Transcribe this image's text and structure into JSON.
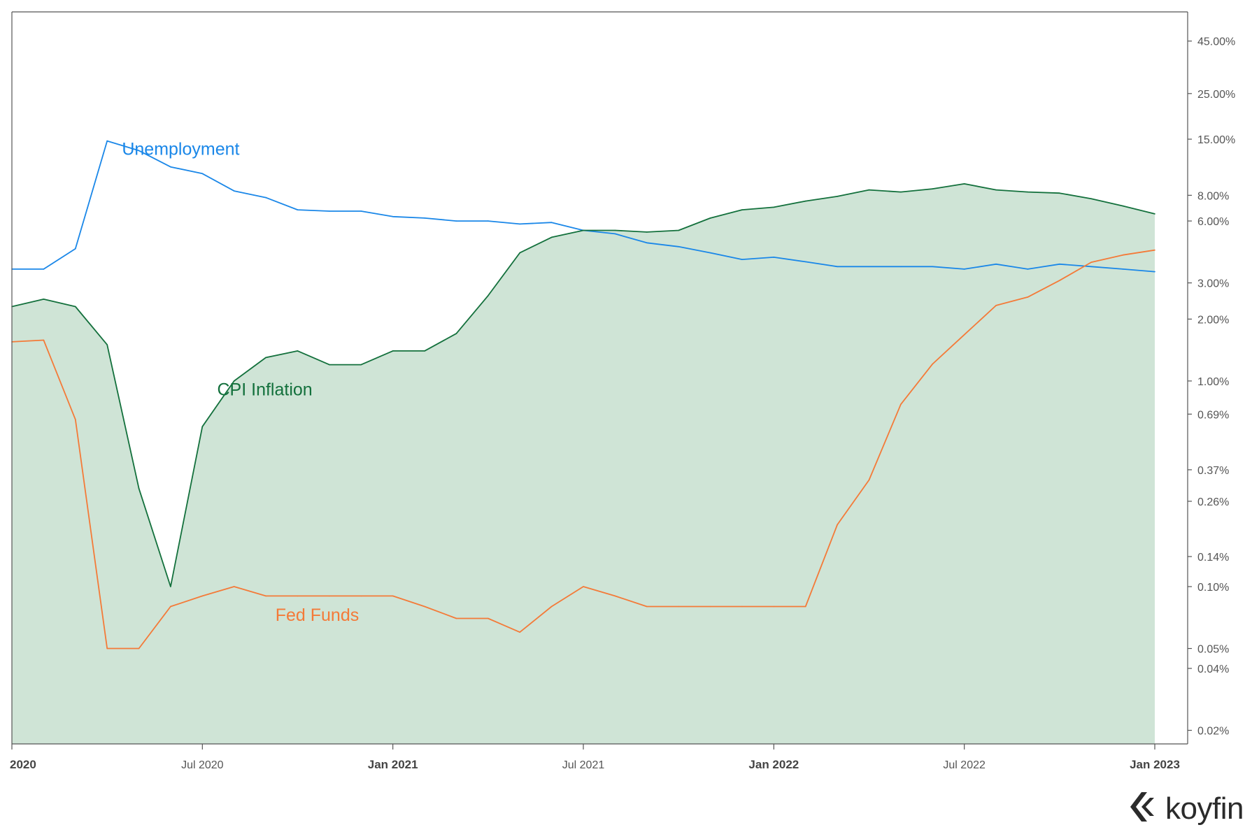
{
  "chart_data": {
    "type": "line",
    "x": [
      "2020-01",
      "2020-02",
      "2020-03",
      "2020-04",
      "2020-05",
      "2020-06",
      "2020-07",
      "2020-08",
      "2020-09",
      "2020-10",
      "2020-11",
      "2020-12",
      "2021-01",
      "2021-02",
      "2021-03",
      "2021-04",
      "2021-05",
      "2021-06",
      "2021-07",
      "2021-08",
      "2021-09",
      "2021-10",
      "2021-11",
      "2021-12",
      "2022-01",
      "2022-02",
      "2022-03",
      "2022-04",
      "2022-05",
      "2022-06",
      "2022-07",
      "2022-08",
      "2022-09",
      "2022-10",
      "2022-11",
      "2022-12",
      "2023-01"
    ],
    "series": [
      {
        "name": "Unemployment",
        "color": "#1a87e8",
        "fill": false,
        "values": [
          3.5,
          3.5,
          4.4,
          14.7,
          13.2,
          11.0,
          10.2,
          8.4,
          7.8,
          6.8,
          6.7,
          6.7,
          6.3,
          6.2,
          6.0,
          6.0,
          5.8,
          5.9,
          5.4,
          5.2,
          4.7,
          4.5,
          4.2,
          3.9,
          4.0,
          3.8,
          3.6,
          3.6,
          3.6,
          3.6,
          3.5,
          3.7,
          3.5,
          3.7,
          3.6,
          3.5,
          3.4
        ]
      },
      {
        "name": "CPI Inflation",
        "color": "#13703c",
        "fill": true,
        "fill_color": "#cfe4d6",
        "values": [
          2.3,
          2.5,
          2.3,
          1.5,
          0.3,
          0.1,
          0.6,
          1.0,
          1.3,
          1.4,
          1.2,
          1.2,
          1.4,
          1.4,
          1.7,
          2.6,
          4.2,
          5.0,
          5.4,
          5.4,
          5.3,
          5.4,
          6.2,
          6.8,
          7.0,
          7.5,
          7.9,
          8.5,
          8.3,
          8.6,
          9.1,
          8.5,
          8.3,
          8.2,
          7.7,
          7.1,
          6.5
        ]
      },
      {
        "name": "Fed Funds",
        "color": "#f47a38",
        "fill": false,
        "values": [
          1.55,
          1.58,
          0.65,
          0.05,
          0.05,
          0.08,
          0.09,
          0.1,
          0.09,
          0.09,
          0.09,
          0.09,
          0.09,
          0.08,
          0.07,
          0.07,
          0.06,
          0.08,
          0.1,
          0.09,
          0.08,
          0.08,
          0.08,
          0.08,
          0.08,
          0.08,
          0.2,
          0.33,
          0.77,
          1.21,
          1.68,
          2.33,
          2.56,
          3.08,
          3.78,
          4.1,
          4.33
        ]
      }
    ],
    "series_labels": [
      {
        "text": "Unemployment",
        "color": "#1a87e8",
        "at_x": "2020-04-15",
        "at_y": 12.6
      },
      {
        "text": "CPI Inflation",
        "color": "#13703c",
        "at_x": "2020-07-15",
        "at_y": 0.85
      },
      {
        "text": "Fed Funds",
        "color": "#f47a38",
        "at_x": "2020-09-10",
        "at_y": 0.068
      }
    ],
    "y_scale": "log",
    "y_ticks": [
      {
        "value": 45,
        "label": "45.00%"
      },
      {
        "value": 25,
        "label": "25.00%"
      },
      {
        "value": 15,
        "label": "15.00%"
      },
      {
        "value": 8,
        "label": "8.00%"
      },
      {
        "value": 6,
        "label": "6.00%"
      },
      {
        "value": 3,
        "label": "3.00%"
      },
      {
        "value": 2,
        "label": "2.00%"
      },
      {
        "value": 1,
        "label": "1.00%"
      },
      {
        "value": 0.69,
        "label": "0.69%"
      },
      {
        "value": 0.37,
        "label": "0.37%"
      },
      {
        "value": 0.26,
        "label": "0.26%"
      },
      {
        "value": 0.14,
        "label": "0.14%"
      },
      {
        "value": 0.1,
        "label": "0.10%"
      },
      {
        "value": 0.05,
        "label": "0.05%"
      },
      {
        "value": 0.04,
        "label": "0.04%"
      },
      {
        "value": 0.02,
        "label": "0.02%"
      }
    ],
    "x_ticks": [
      {
        "at": "2020-01",
        "label": "2020",
        "major": true
      },
      {
        "at": "2020-07",
        "label": "Jul 2020",
        "major": false
      },
      {
        "at": "2021-01",
        "label": "Jan 2021",
        "major": true
      },
      {
        "at": "2021-07",
        "label": "Jul 2021",
        "major": false
      },
      {
        "at": "2022-01",
        "label": "Jan 2022",
        "major": true
      },
      {
        "at": "2022-07",
        "label": "Jul 2022",
        "major": false
      },
      {
        "at": "2023-01",
        "label": "Jan 2023",
        "major": true
      }
    ],
    "title": "",
    "xlabel": "",
    "ylabel": "",
    "grid": false,
    "legend": "inline labels"
  },
  "brand": {
    "name": "koyfin",
    "icon": "koyfin-logo-icon"
  }
}
